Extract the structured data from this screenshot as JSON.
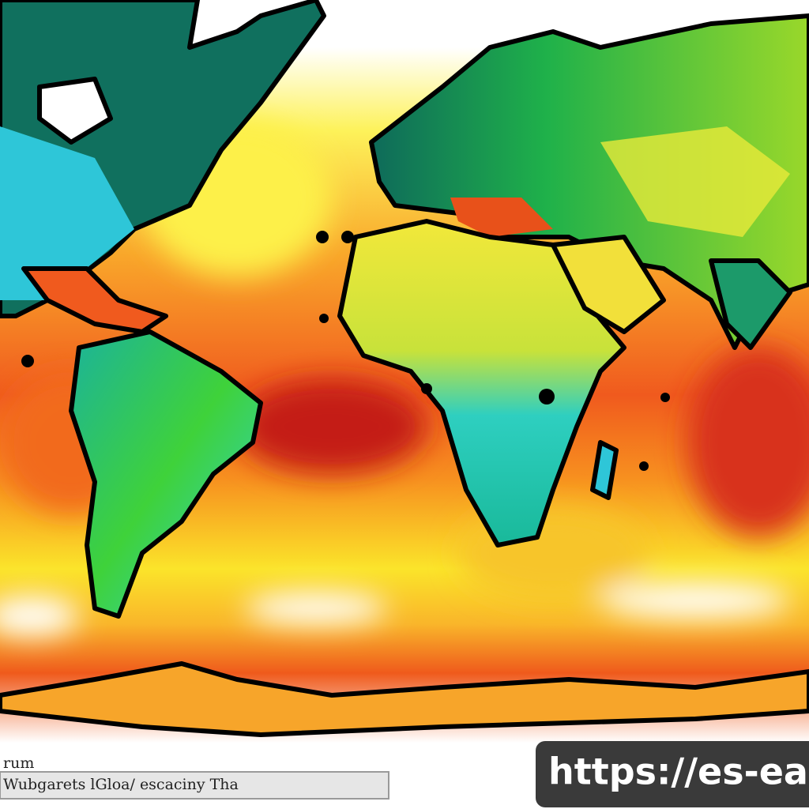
{
  "legend": {
    "title": "rum",
    "caption": "Wubgarets lGloa/ escaciny Tha"
  },
  "watermark": "https://es-ea"
}
